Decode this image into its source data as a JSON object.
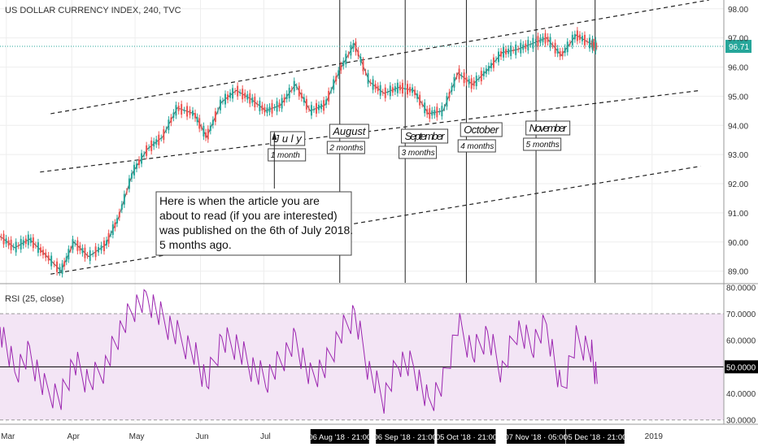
{
  "header": {
    "title": "US DOLLAR CURRENCY INDEX, 240, TVC"
  },
  "rsi_panel": {
    "label": "RSI (25, close)"
  },
  "price_badge": {
    "value": "96.71",
    "color": "#26a69a"
  },
  "colors": {
    "up": "#26a69a",
    "down": "#ef5350",
    "rsi_line": "#9c27b0",
    "rsi_band": "#f3e5f5",
    "grid": "#eeeeee"
  },
  "annotations": {
    "months": [
      {
        "name": "July",
        "duration": "1 month",
        "date": "2018-07-10"
      },
      {
        "name": "August",
        "duration": "2 months",
        "date": "2018-08-07"
      },
      {
        "name": "September",
        "duration": "3 months",
        "date": "2018-09-10"
      },
      {
        "name": "October",
        "duration": "4 months",
        "date": "2018-10-08"
      },
      {
        "name": "November",
        "duration": "5 months",
        "date": "2018-11-08"
      }
    ],
    "article_note": [
      "Here is when the article you are",
      "about to read (if you are interested)",
      "was published on the 6th of July 2018.",
      "5 months ago."
    ]
  },
  "x_axis": {
    "month_ticks": [
      {
        "label": "Mar",
        "date": "2018-03-01"
      },
      {
        "label": "Apr",
        "date": "2018-04-01"
      },
      {
        "label": "May",
        "date": "2018-05-01"
      },
      {
        "label": "Jun",
        "date": "2018-06-01"
      },
      {
        "label": "Jul",
        "date": "2018-07-01"
      },
      {
        "label": "2019",
        "date": "2019-01-01"
      }
    ],
    "highlight_ticks": [
      {
        "label": "06 Aug '18 · 21:00",
        "date": "2018-08-06"
      },
      {
        "label": "06 Sep '18 · 21:00",
        "date": "2018-09-06"
      },
      {
        "label": "05 Oct '18 · 21:00",
        "date": "2018-10-05"
      },
      {
        "label": "07 Nov '18 · 05:00",
        "date": "2018-11-07"
      },
      {
        "label": "05 Dec '18 · 21:00",
        "date": "2018-12-05"
      }
    ]
  },
  "chart_data": [
    {
      "type": "line",
      "title": "US DOLLAR CURRENCY INDEX, 240, TVC",
      "series": [
        {
          "name": "US DOLLAR CURRENCY INDEX",
          "x": [
            "2018-02-26",
            "2018-03-05",
            "2018-03-12",
            "2018-03-19",
            "2018-03-27",
            "2018-04-02",
            "2018-04-09",
            "2018-04-17",
            "2018-04-23",
            "2018-04-30",
            "2018-05-07",
            "2018-05-14",
            "2018-05-21",
            "2018-05-29",
            "2018-06-04",
            "2018-06-11",
            "2018-06-18",
            "2018-06-25",
            "2018-07-02",
            "2018-07-09",
            "2018-07-16",
            "2018-07-23",
            "2018-07-30",
            "2018-08-06",
            "2018-08-13",
            "2018-08-20",
            "2018-08-27",
            "2018-09-03",
            "2018-09-10",
            "2018-09-17",
            "2018-09-24",
            "2018-10-01",
            "2018-10-08",
            "2018-10-15",
            "2018-10-22",
            "2018-10-29",
            "2018-11-05",
            "2018-11-12",
            "2018-11-19",
            "2018-11-26",
            "2018-12-03",
            "2018-12-06"
          ],
          "values": [
            90.2,
            89.8,
            90.1,
            89.6,
            89.0,
            90.0,
            89.5,
            89.9,
            90.8,
            92.4,
            93.2,
            93.6,
            94.6,
            94.4,
            93.6,
            94.8,
            95.2,
            94.9,
            94.5,
            94.7,
            95.4,
            94.5,
            94.7,
            95.9,
            96.8,
            95.5,
            95.1,
            95.3,
            95.2,
            94.4,
            94.5,
            95.8,
            95.4,
            95.9,
            96.5,
            96.6,
            96.8,
            97.0,
            96.4,
            97.1,
            96.8,
            96.71
          ]
        }
      ],
      "y_axis": {
        "ticks": [
          89.0,
          90.0,
          91.0,
          92.0,
          93.0,
          94.0,
          95.0,
          96.0,
          97.0,
          98.0
        ],
        "ylim": [
          88.6,
          98.3
        ]
      },
      "xlim": [
        "2018-02-26",
        "2019-02-04"
      ],
      "grid": true,
      "trendlines": [
        {
          "style": "dashed",
          "points": [
            [
              "2018-03-22",
              94.4
            ],
            [
              "2019-01-28",
              98.3
            ]
          ]
        },
        {
          "style": "dashed",
          "points": [
            [
              "2018-03-17",
              92.4
            ],
            [
              "2019-01-24",
              95.2
            ]
          ]
        },
        {
          "style": "dashed",
          "points": [
            [
              "2018-03-22",
              88.9
            ],
            [
              "2019-01-24",
              92.6
            ]
          ]
        }
      ]
    },
    {
      "type": "line",
      "title": "RSI (25, close)",
      "series": [
        {
          "name": "RSI",
          "x": [
            "2018-02-26",
            "2018-03-05",
            "2018-03-12",
            "2018-03-19",
            "2018-03-27",
            "2018-04-02",
            "2018-04-09",
            "2018-04-17",
            "2018-04-23",
            "2018-04-30",
            "2018-05-07",
            "2018-05-14",
            "2018-05-21",
            "2018-05-29",
            "2018-06-04",
            "2018-06-11",
            "2018-06-18",
            "2018-06-25",
            "2018-07-02",
            "2018-07-09",
            "2018-07-16",
            "2018-07-23",
            "2018-07-30",
            "2018-08-06",
            "2018-08-13",
            "2018-08-20",
            "2018-08-27",
            "2018-09-03",
            "2018-09-10",
            "2018-09-17",
            "2018-09-24",
            "2018-10-01",
            "2018-10-08",
            "2018-10-15",
            "2018-10-22",
            "2018-10-29",
            "2018-11-05",
            "2018-11-12",
            "2018-11-19",
            "2018-11-26",
            "2018-12-03",
            "2018-12-06"
          ],
          "values": [
            65,
            48,
            55,
            42,
            38,
            52,
            44,
            50,
            62,
            72,
            76,
            68,
            62,
            55,
            44,
            60,
            58,
            50,
            45,
            52,
            60,
            46,
            50,
            62,
            70,
            48,
            38,
            52,
            50,
            36,
            44,
            66,
            55,
            62,
            48,
            64,
            58,
            66,
            40,
            60,
            56,
            45
          ]
        }
      ],
      "y_axis": {
        "ticks": [
          30,
          40,
          50,
          60,
          70,
          80
        ],
        "ylim": [
          29,
          81
        ]
      },
      "reference_lines": [
        30,
        50,
        70
      ],
      "band": [
        30,
        70
      ]
    }
  ]
}
